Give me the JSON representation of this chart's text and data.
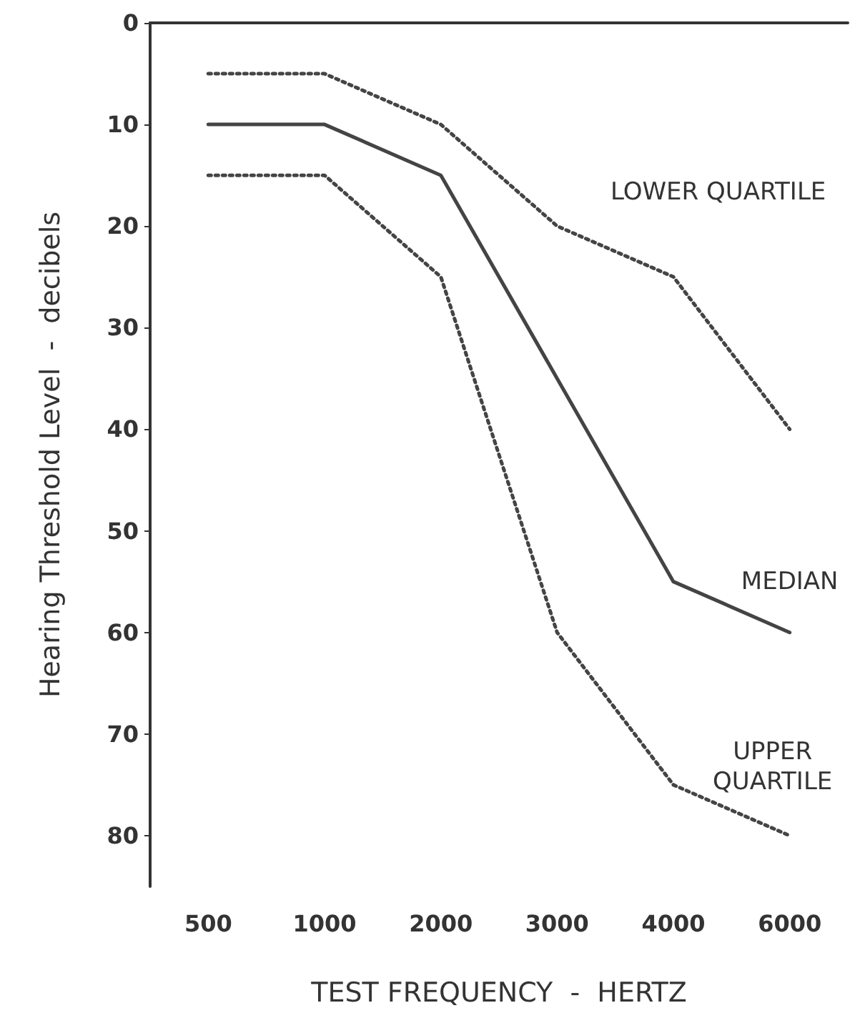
{
  "chart_data": {
    "type": "line",
    "xlabel": "TEST FREQUENCY  -  HERTZ",
    "ylabel": "Hearing Threshold Level  -  decibels",
    "categories": [
      "500",
      "1000",
      "2000",
      "3000",
      "4000",
      "6000"
    ],
    "series": [
      {
        "name": "LOWER QUARTILE",
        "color": "#444444",
        "line_style": "dotted",
        "values": [
          5,
          5,
          10,
          20,
          25,
          40
        ]
      },
      {
        "name": "MEDIAN",
        "color": "#444444",
        "line_style": "solid",
        "values": [
          10,
          10,
          15,
          35,
          55,
          60
        ]
      },
      {
        "name": "UPPER\nQUARTILE",
        "color": "#444444",
        "line_style": "dotted",
        "values": [
          15,
          15,
          25,
          60,
          75,
          80
        ]
      }
    ],
    "ylim": [
      85,
      0
    ],
    "yticks": [
      0,
      10,
      20,
      30,
      40,
      50,
      60,
      70,
      80
    ],
    "grid": false,
    "legend": false,
    "marker": "none"
  }
}
